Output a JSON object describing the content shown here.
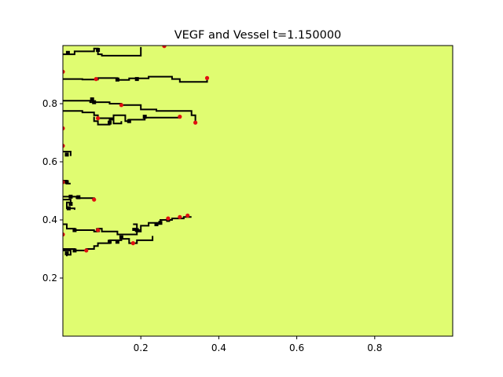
{
  "chart_data": {
    "type": "heatmap",
    "title": "VEGF and Vessel t=1.150000",
    "xlabel": "",
    "ylabel": "",
    "xlim": [
      0.0,
      1.0
    ],
    "ylim": [
      0.0,
      1.0
    ],
    "x_ticks": [
      "0.2",
      "0.4",
      "0.6",
      "0.8"
    ],
    "y_ticks": [
      "0.2",
      "0.4",
      "0.6",
      "0.8"
    ],
    "grid": false,
    "field": {
      "name": "VEGF",
      "color": "#e0fc71",
      "description_value": "uniform"
    },
    "vessel_color": "#000000",
    "tip_color": "#e01010",
    "vessels": [
      [
        [
          0.0,
          0.97
        ],
        [
          0.03,
          0.97
        ],
        [
          0.03,
          0.98
        ],
        [
          0.08,
          0.98
        ],
        [
          0.08,
          0.99
        ],
        [
          0.09,
          0.99
        ],
        [
          0.09,
          0.97
        ],
        [
          0.1,
          0.97
        ],
        [
          0.1,
          0.965
        ],
        [
          0.2,
          0.965
        ],
        [
          0.2,
          0.995
        ]
      ],
      [
        [
          0.0,
          0.885
        ],
        [
          0.05,
          0.885
        ],
        [
          0.05,
          0.883
        ],
        [
          0.09,
          0.883
        ],
        [
          0.09,
          0.888
        ],
        [
          0.14,
          0.888
        ],
        [
          0.14,
          0.882
        ],
        [
          0.17,
          0.882
        ],
        [
          0.17,
          0.887
        ],
        [
          0.22,
          0.887
        ],
        [
          0.22,
          0.893
        ],
        [
          0.28,
          0.893
        ],
        [
          0.28,
          0.885
        ],
        [
          0.3,
          0.885
        ],
        [
          0.3,
          0.875
        ],
        [
          0.37,
          0.875
        ],
        [
          0.37,
          0.888
        ]
      ],
      [
        [
          0.0,
          0.81
        ],
        [
          0.07,
          0.81
        ],
        [
          0.07,
          0.805
        ],
        [
          0.12,
          0.805
        ],
        [
          0.12,
          0.8
        ],
        [
          0.15,
          0.8
        ],
        [
          0.15,
          0.795
        ],
        [
          0.2,
          0.795
        ],
        [
          0.2,
          0.78
        ],
        [
          0.24,
          0.78
        ],
        [
          0.24,
          0.775
        ],
        [
          0.33,
          0.775
        ],
        [
          0.33,
          0.76
        ],
        [
          0.34,
          0.76
        ],
        [
          0.34,
          0.735
        ]
      ],
      [
        [
          0.0,
          0.775
        ],
        [
          0.05,
          0.775
        ],
        [
          0.05,
          0.77
        ],
        [
          0.08,
          0.77
        ],
        [
          0.08,
          0.76
        ],
        [
          0.09,
          0.76
        ],
        [
          0.09,
          0.75
        ],
        [
          0.13,
          0.75
        ],
        [
          0.13,
          0.76
        ],
        [
          0.16,
          0.76
        ],
        [
          0.16,
          0.74
        ],
        [
          0.17,
          0.74
        ],
        [
          0.17,
          0.745
        ],
        [
          0.21,
          0.745
        ],
        [
          0.21,
          0.752
        ],
        [
          0.3,
          0.752
        ],
        [
          0.3,
          0.755
        ]
      ],
      [
        [
          0.08,
          0.755
        ],
        [
          0.08,
          0.74
        ],
        [
          0.09,
          0.74
        ],
        [
          0.09,
          0.728
        ],
        [
          0.12,
          0.728
        ],
        [
          0.12,
          0.745
        ],
        [
          0.13,
          0.745
        ],
        [
          0.13,
          0.732
        ],
        [
          0.15,
          0.732
        ],
        [
          0.15,
          0.74
        ]
      ],
      [
        [
          0.0,
          0.635
        ],
        [
          0.02,
          0.635
        ],
        [
          0.02,
          0.62
        ]
      ],
      [
        [
          0.0,
          0.535
        ],
        [
          0.01,
          0.535
        ],
        [
          0.01,
          0.525
        ],
        [
          0.02,
          0.525
        ]
      ],
      [
        [
          0.0,
          0.48
        ],
        [
          0.035,
          0.48
        ],
        [
          0.035,
          0.475
        ],
        [
          0.08,
          0.475
        ],
        [
          0.08,
          0.47
        ]
      ],
      [
        [
          0.0,
          0.47
        ],
        [
          0.02,
          0.47
        ],
        [
          0.02,
          0.46
        ],
        [
          0.01,
          0.46
        ],
        [
          0.01,
          0.44
        ],
        [
          0.03,
          0.44
        ],
        [
          0.03,
          0.435
        ]
      ],
      [
        [
          0.0,
          0.385
        ],
        [
          0.01,
          0.385
        ],
        [
          0.01,
          0.37
        ],
        [
          0.03,
          0.37
        ],
        [
          0.03,
          0.365
        ],
        [
          0.08,
          0.365
        ],
        [
          0.08,
          0.36
        ],
        [
          0.09,
          0.36
        ],
        [
          0.09,
          0.37
        ],
        [
          0.1,
          0.37
        ],
        [
          0.1,
          0.36
        ],
        [
          0.14,
          0.36
        ],
        [
          0.14,
          0.35
        ],
        [
          0.19,
          0.35
        ],
        [
          0.19,
          0.36
        ],
        [
          0.2,
          0.36
        ],
        [
          0.2,
          0.38
        ],
        [
          0.22,
          0.38
        ],
        [
          0.22,
          0.39
        ],
        [
          0.25,
          0.39
        ],
        [
          0.25,
          0.4
        ],
        [
          0.28,
          0.4
        ],
        [
          0.28,
          0.405
        ],
        [
          0.31,
          0.405
        ],
        [
          0.31,
          0.41
        ],
        [
          0.33,
          0.41
        ]
      ],
      [
        [
          0.18,
          0.385
        ],
        [
          0.19,
          0.385
        ],
        [
          0.19,
          0.37
        ],
        [
          0.18,
          0.37
        ],
        [
          0.18,
          0.365
        ],
        [
          0.2,
          0.365
        ]
      ],
      [
        [
          0.0,
          0.3
        ],
        [
          0.03,
          0.3
        ],
        [
          0.03,
          0.295
        ],
        [
          0.06,
          0.295
        ],
        [
          0.06,
          0.3
        ],
        [
          0.08,
          0.3
        ],
        [
          0.08,
          0.31
        ],
        [
          0.09,
          0.31
        ],
        [
          0.09,
          0.32
        ],
        [
          0.12,
          0.32
        ],
        [
          0.12,
          0.33
        ],
        [
          0.15,
          0.33
        ],
        [
          0.15,
          0.335
        ],
        [
          0.17,
          0.335
        ],
        [
          0.17,
          0.32
        ],
        [
          0.19,
          0.32
        ],
        [
          0.19,
          0.33
        ],
        [
          0.23,
          0.33
        ],
        [
          0.23,
          0.345
        ]
      ],
      [
        [
          0.0,
          0.295
        ],
        [
          0.02,
          0.295
        ],
        [
          0.02,
          0.28
        ],
        [
          0.01,
          0.28
        ],
        [
          0.01,
          0.275
        ]
      ]
    ],
    "vessel_blobs": [
      [
        0.013,
        0.975
      ],
      [
        0.09,
        0.985
      ],
      [
        0.14,
        0.883
      ],
      [
        0.19,
        0.885
      ],
      [
        0.08,
        0.805
      ],
      [
        0.075,
        0.815
      ],
      [
        0.17,
        0.74
      ],
      [
        0.21,
        0.755
      ],
      [
        0.12,
        0.735
      ],
      [
        0.01,
        0.625
      ],
      [
        0.01,
        0.53
      ],
      [
        0.02,
        0.48
      ],
      [
        0.04,
        0.478
      ],
      [
        0.02,
        0.455
      ],
      [
        0.015,
        0.44
      ],
      [
        0.03,
        0.365
      ],
      [
        0.09,
        0.365
      ],
      [
        0.15,
        0.34
      ],
      [
        0.19,
        0.365
      ],
      [
        0.25,
        0.39
      ],
      [
        0.24,
        0.385
      ],
      [
        0.27,
        0.4
      ],
      [
        0.12,
        0.325
      ],
      [
        0.14,
        0.325
      ],
      [
        0.01,
        0.285
      ],
      [
        0.03,
        0.295
      ]
    ],
    "tips": [
      [
        0.26,
        0.998
      ],
      [
        0.0,
        0.91
      ],
      [
        0.085,
        0.885
      ],
      [
        0.37,
        0.888
      ],
      [
        0.15,
        0.795
      ],
      [
        0.09,
        0.75
      ],
      [
        0.3,
        0.755
      ],
      [
        0.34,
        0.735
      ],
      [
        0.0,
        0.715
      ],
      [
        0.0,
        0.655
      ],
      [
        0.0,
        0.53
      ],
      [
        0.08,
        0.47
      ],
      [
        0.32,
        0.415
      ],
      [
        0.3,
        0.41
      ],
      [
        0.27,
        0.405
      ],
      [
        0.09,
        0.365
      ],
      [
        0.0,
        0.35
      ],
      [
        0.06,
        0.295
      ],
      [
        0.18,
        0.32
      ]
    ]
  }
}
